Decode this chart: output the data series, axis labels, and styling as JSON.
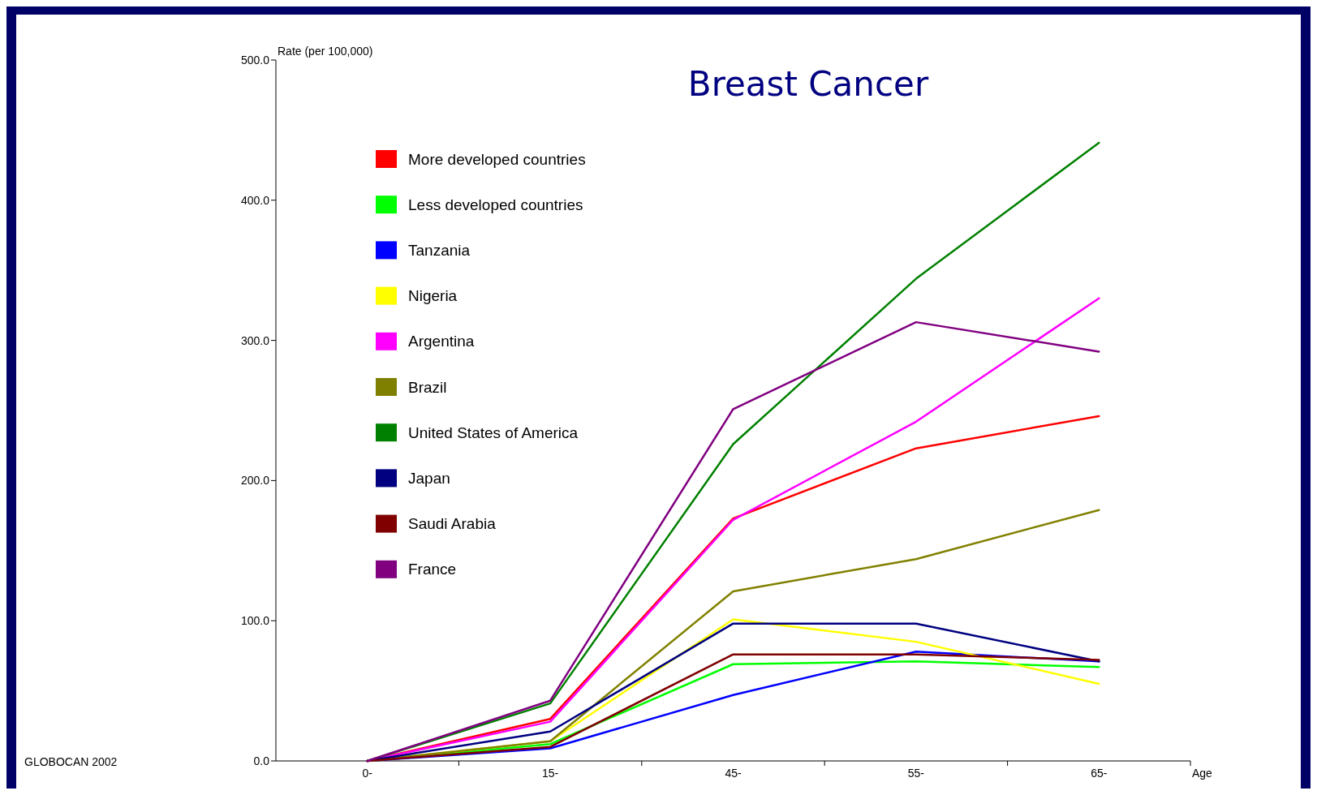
{
  "chart_data": {
    "type": "line",
    "title": "Breast Cancer",
    "ylabel": "Rate (per 100,000)",
    "xlabel": "Age",
    "categories": [
      "0-",
      "15-",
      "45-",
      "55-",
      "65-"
    ],
    "ylim": [
      0,
      500
    ],
    "yticks": [
      {
        "value": 0,
        "label": "0.0"
      },
      {
        "value": 100,
        "label": "100.0"
      },
      {
        "value": 200,
        "label": "200.0"
      },
      {
        "value": 300,
        "label": "300.0"
      },
      {
        "value": 400,
        "label": "400.0"
      },
      {
        "value": 500,
        "label": "500.0"
      }
    ],
    "grid": false,
    "legend": "top left",
    "marker": "none",
    "line_style": "solid",
    "annotations": [
      "GLOBOCAN 2002"
    ],
    "series": [
      {
        "name": "More developed countries",
        "color": "#ff0000",
        "values": [
          0,
          30,
          173,
          223,
          246
        ]
      },
      {
        "name": "Less developed countries",
        "color": "#00ff00",
        "values": [
          0,
          12,
          69,
          71,
          67
        ]
      },
      {
        "name": "Tanzania",
        "color": "#0000ff",
        "values": [
          0,
          9,
          47,
          78,
          71
        ]
      },
      {
        "name": "Nigeria",
        "color": "#ffff00",
        "values": [
          0,
          14,
          101,
          85,
          55
        ]
      },
      {
        "name": "Argentina",
        "color": "#ff00ff",
        "values": [
          0,
          28,
          172,
          242,
          330
        ]
      },
      {
        "name": "Brazil",
        "color": "#808000",
        "values": [
          0,
          14,
          121,
          144,
          179
        ]
      },
      {
        "name": "United States of America",
        "color": "#008000",
        "values": [
          0,
          41,
          226,
          344,
          441
        ]
      },
      {
        "name": "Japan",
        "color": "#000080",
        "values": [
          0,
          21,
          98,
          98,
          71
        ]
      },
      {
        "name": "Saudi Arabia",
        "color": "#800000",
        "values": [
          0,
          10,
          76,
          76,
          72
        ]
      },
      {
        "name": "France",
        "color": "#800080",
        "values": [
          0,
          43,
          251,
          313,
          292
        ]
      }
    ]
  }
}
